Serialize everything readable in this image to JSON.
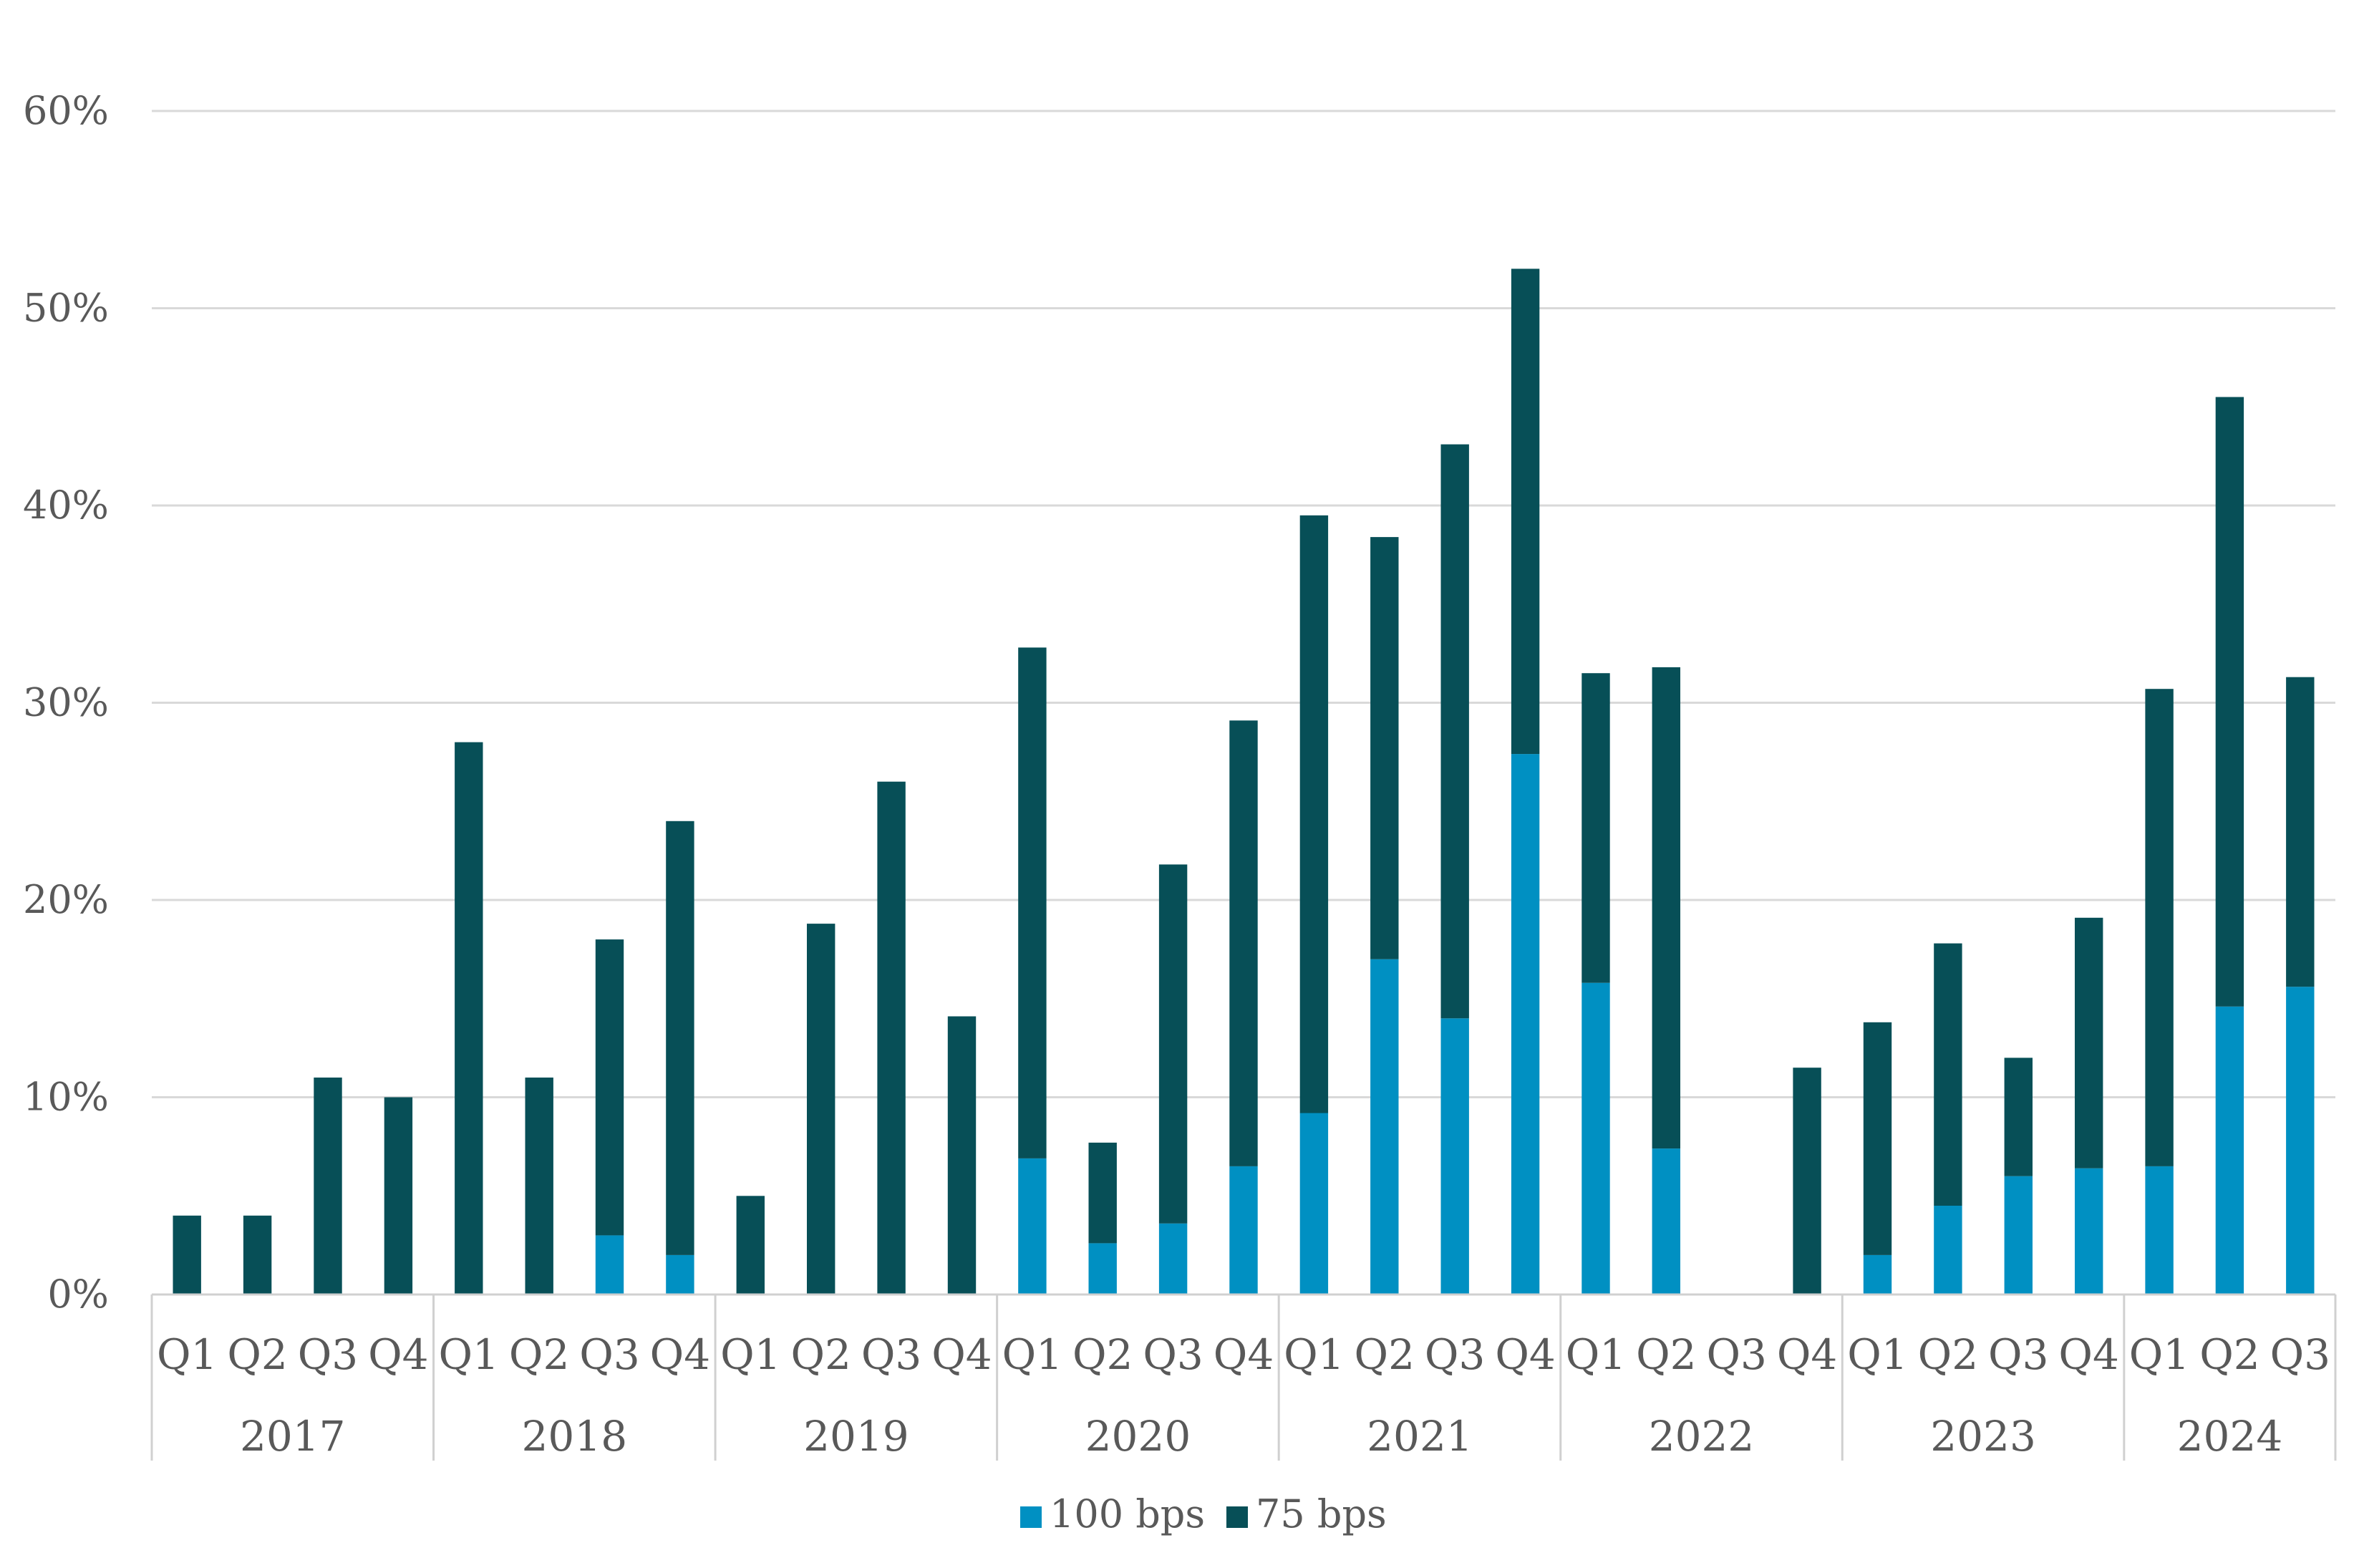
{
  "colors": {
    "bps100": "#0090c2",
    "bps75": "#074f57",
    "grid": "#d9d9d9",
    "text": "#595959"
  },
  "chart_data": {
    "type": "bar",
    "stacked": true,
    "title": "",
    "xlabel": "",
    "ylabel": "",
    "ylim": [
      0,
      60
    ],
    "yticks": [
      "0%",
      "10%",
      "20%",
      "30%",
      "40%",
      "50%",
      "60%"
    ],
    "grid": true,
    "legend": "bottom-center",
    "years": [
      {
        "label": "2017",
        "quarters": [
          "Q1",
          "Q2",
          "Q3",
          "Q4"
        ]
      },
      {
        "label": "2018",
        "quarters": [
          "Q1",
          "Q2",
          "Q3",
          "Q4"
        ]
      },
      {
        "label": "2019",
        "quarters": [
          "Q1",
          "Q2",
          "Q3",
          "Q4"
        ]
      },
      {
        "label": "2020",
        "quarters": [
          "Q1",
          "Q2",
          "Q3",
          "Q4"
        ]
      },
      {
        "label": "2021",
        "quarters": [
          "Q1",
          "Q2",
          "Q3",
          "Q4"
        ]
      },
      {
        "label": "2022",
        "quarters": [
          "Q1",
          "Q2",
          "Q3",
          "Q4"
        ]
      },
      {
        "label": "2023",
        "quarters": [
          "Q1",
          "Q2",
          "Q3",
          "Q4"
        ]
      },
      {
        "label": "2024",
        "quarters": [
          "Q1",
          "Q2",
          "Q3"
        ]
      }
    ],
    "series": [
      {
        "name": "100 bps",
        "color": "#0090c2",
        "values": [
          0,
          0,
          0,
          0,
          0,
          0,
          3,
          2,
          0,
          0,
          0,
          0,
          6.9,
          2.6,
          3.6,
          6.5,
          9.2,
          17,
          14,
          27.4,
          15.8,
          7.4,
          0,
          0,
          2,
          4.5,
          6,
          6.4,
          6.5,
          14.6,
          15.6
        ]
      },
      {
        "name": "75 bps",
        "color": "#074f57",
        "values": [
          4,
          4,
          11,
          10,
          28,
          11,
          15,
          22,
          5,
          18.8,
          26,
          14.1,
          25.9,
          5.1,
          18.2,
          22.6,
          30.3,
          21.4,
          29.1,
          24.6,
          15.7,
          24.4,
          0,
          11.5,
          11.8,
          13.3,
          6,
          12.7,
          24.2,
          30.9,
          15.7
        ]
      }
    ]
  }
}
